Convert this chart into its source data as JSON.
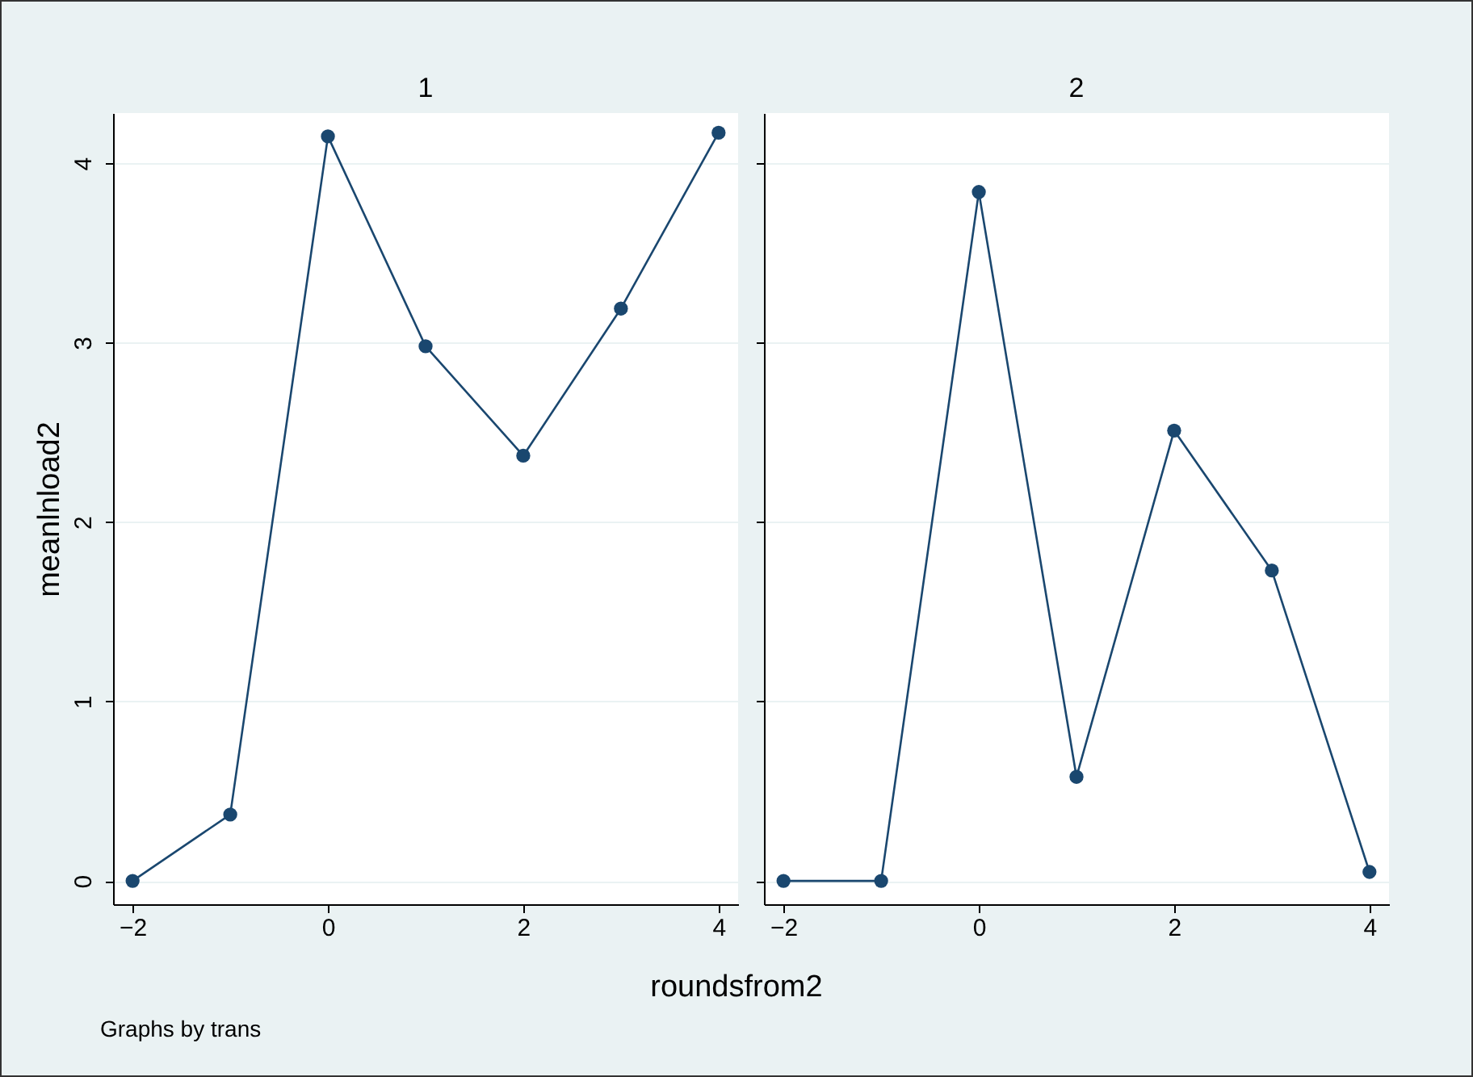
{
  "chart_data": [
    {
      "type": "line",
      "title": "1",
      "xlabel": "roundsfrom2",
      "ylabel": "meanlnload2",
      "annotations": [
        "Graphs by trans"
      ],
      "x": [
        -2,
        -1,
        0,
        1,
        2,
        3,
        4
      ],
      "series": [
        {
          "color": "#1a476f",
          "values": [
            0,
            0.37,
            4.15,
            2.98,
            2.37,
            3.19,
            4.17
          ]
        }
      ],
      "xlim": [
        -2.2,
        4.2
      ],
      "xticks": [
        -2,
        0,
        2,
        4
      ],
      "ylim": [
        -0.13,
        4.28
      ],
      "yticks": [
        0,
        1,
        2,
        3,
        4
      ],
      "grid": "y",
      "marker": "circle"
    },
    {
      "type": "line",
      "title": "2",
      "x": [
        -2,
        -1,
        0,
        1,
        2,
        3,
        4
      ],
      "series": [
        {
          "color": "#1a476f",
          "values": [
            0,
            0,
            3.84,
            0.58,
            2.51,
            1.73,
            0.05
          ]
        }
      ],
      "xlim": [
        -2.2,
        4.2
      ],
      "xticks": [
        -2,
        0,
        2,
        4
      ],
      "ylim": [
        -0.13,
        4.28
      ],
      "yticks": [
        0,
        1,
        2,
        3,
        4
      ],
      "grid": "y",
      "marker": "circle",
      "tick_labels": "x"
    }
  ]
}
